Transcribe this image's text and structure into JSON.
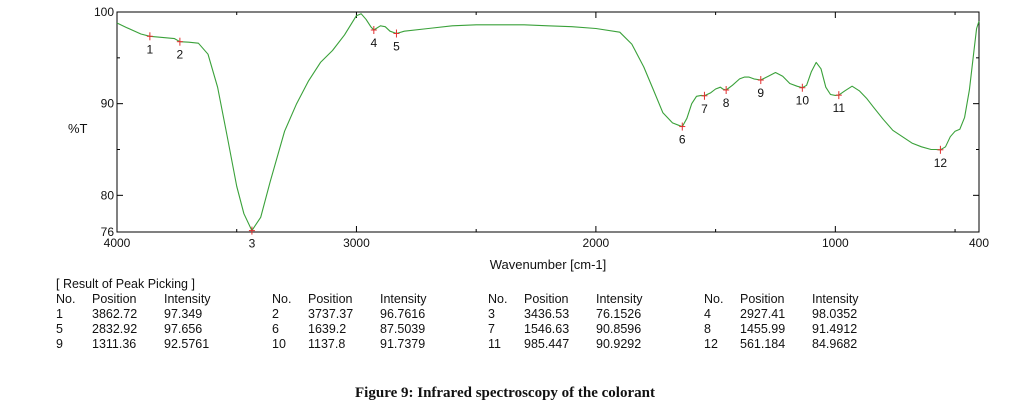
{
  "chart_data": {
    "type": "line",
    "xlabel": "Wavenumber [cm-1]",
    "ylabel": "%T",
    "xlim": [
      4000,
      400
    ],
    "ylim": [
      76,
      100
    ],
    "x_ticks": [
      "4000",
      "3000",
      "2000",
      "1000",
      "400"
    ],
    "x_tick_values": [
      4000,
      3000,
      2000,
      1000,
      400
    ],
    "y_ticks": [
      "100",
      "90",
      "80",
      "76"
    ],
    "y_tick_values": [
      100,
      90,
      80,
      76
    ],
    "line_color": "#3aa13a",
    "marker_color": "#e03030",
    "series": [
      {
        "x": [
          4000,
          3960,
          3900,
          3862.72,
          3800,
          3760,
          3737.37,
          3700,
          3660,
          3620,
          3580,
          3540,
          3500,
          3470,
          3436.53,
          3400,
          3360,
          3300,
          3250,
          3200,
          3150,
          3100,
          3050,
          3000,
          2980,
          2960,
          2940,
          2927.41,
          2900,
          2880,
          2860,
          2832.92,
          2800,
          2700,
          2600,
          2500,
          2400,
          2300,
          2200,
          2100,
          2000,
          1900,
          1850,
          1800,
          1760,
          1720,
          1680,
          1650,
          1639.2,
          1620,
          1600,
          1580,
          1560,
          1546.63,
          1520,
          1500,
          1480,
          1470,
          1455.99,
          1430,
          1400,
          1380,
          1360,
          1340,
          1311.36,
          1280,
          1250,
          1220,
          1190,
          1160,
          1137.8,
          1120,
          1100,
          1080,
          1060,
          1040,
          1020,
          1000,
          985.447,
          960,
          930,
          900,
          870,
          840,
          800,
          760,
          720,
          680,
          640,
          600,
          580,
          561.184,
          540,
          520,
          500,
          480,
          460,
          440,
          420,
          410,
          400
        ],
        "y": [
          98.8,
          98.3,
          97.6,
          97.349,
          97.2,
          97.1,
          96.76,
          96.7,
          96.6,
          95.4,
          91.8,
          86.5,
          81.0,
          78.0,
          76.15,
          77.6,
          81.5,
          87.0,
          90.0,
          92.5,
          94.5,
          95.8,
          97.5,
          99.6,
          99.8,
          99.2,
          98.4,
          98.04,
          98.5,
          98.4,
          97.9,
          97.66,
          97.9,
          98.2,
          98.5,
          98.6,
          98.6,
          98.6,
          98.5,
          98.4,
          98.2,
          97.8,
          96.5,
          94.0,
          91.5,
          89.0,
          87.9,
          87.6,
          87.5,
          88.4,
          90.0,
          90.8,
          90.9,
          90.86,
          91.2,
          91.6,
          91.8,
          91.6,
          91.49,
          92.0,
          92.7,
          92.9,
          92.9,
          92.7,
          92.58,
          93.0,
          93.4,
          93.0,
          92.2,
          91.9,
          91.74,
          92.0,
          93.5,
          94.5,
          93.8,
          91.8,
          91.0,
          90.9,
          90.93,
          91.4,
          91.9,
          91.4,
          90.6,
          89.6,
          88.3,
          87.1,
          86.4,
          85.7,
          85.3,
          85.0,
          85.0,
          84.97,
          85.3,
          86.4,
          87.0,
          87.2,
          88.5,
          91.5,
          96.0,
          98.2,
          99.0
        ]
      }
    ],
    "peaks": [
      {
        "label": "1",
        "x": 3862.72,
        "y": 97.349
      },
      {
        "label": "2",
        "x": 3737.37,
        "y": 96.7616
      },
      {
        "label": "3",
        "x": 3436.53,
        "y": 76.1526
      },
      {
        "label": "4",
        "x": 2927.41,
        "y": 98.0352
      },
      {
        "label": "5",
        "x": 2832.92,
        "y": 97.656
      },
      {
        "label": "6",
        "x": 1639.2,
        "y": 87.5039
      },
      {
        "label": "7",
        "x": 1546.63,
        "y": 90.8596
      },
      {
        "label": "8",
        "x": 1455.99,
        "y": 91.4912
      },
      {
        "label": "9",
        "x": 1311.36,
        "y": 92.5761
      },
      {
        "label": "10",
        "x": 1137.8,
        "y": 91.7379
      },
      {
        "label": "11",
        "x": 985.447,
        "y": 90.9292
      },
      {
        "label": "12",
        "x": 561.184,
        "y": 84.9682
      }
    ]
  },
  "peak_table": {
    "title": "[ Result of Peak Picking ]",
    "headers": [
      "No.",
      "Position",
      "Intensity"
    ],
    "columns": [
      [
        [
          "1",
          "3862.72",
          "97.349"
        ],
        [
          "5",
          "2832.92",
          "97.656"
        ],
        [
          "9",
          "1311.36",
          "92.5761"
        ]
      ],
      [
        [
          "2",
          "3737.37",
          "96.7616"
        ],
        [
          "6",
          "1639.2",
          "87.5039"
        ],
        [
          "10",
          "1137.8",
          "91.7379"
        ]
      ],
      [
        [
          "3",
          "3436.53",
          "76.1526"
        ],
        [
          "7",
          "1546.63",
          "90.8596"
        ],
        [
          "11",
          "985.447",
          "90.9292"
        ]
      ],
      [
        [
          "4",
          "2927.41",
          "98.0352"
        ],
        [
          "8",
          "1455.99",
          "91.4912"
        ],
        [
          "12",
          "561.184",
          "84.9682"
        ]
      ]
    ]
  },
  "caption": "Figure 9: Infrared spectroscopy of the colorant"
}
